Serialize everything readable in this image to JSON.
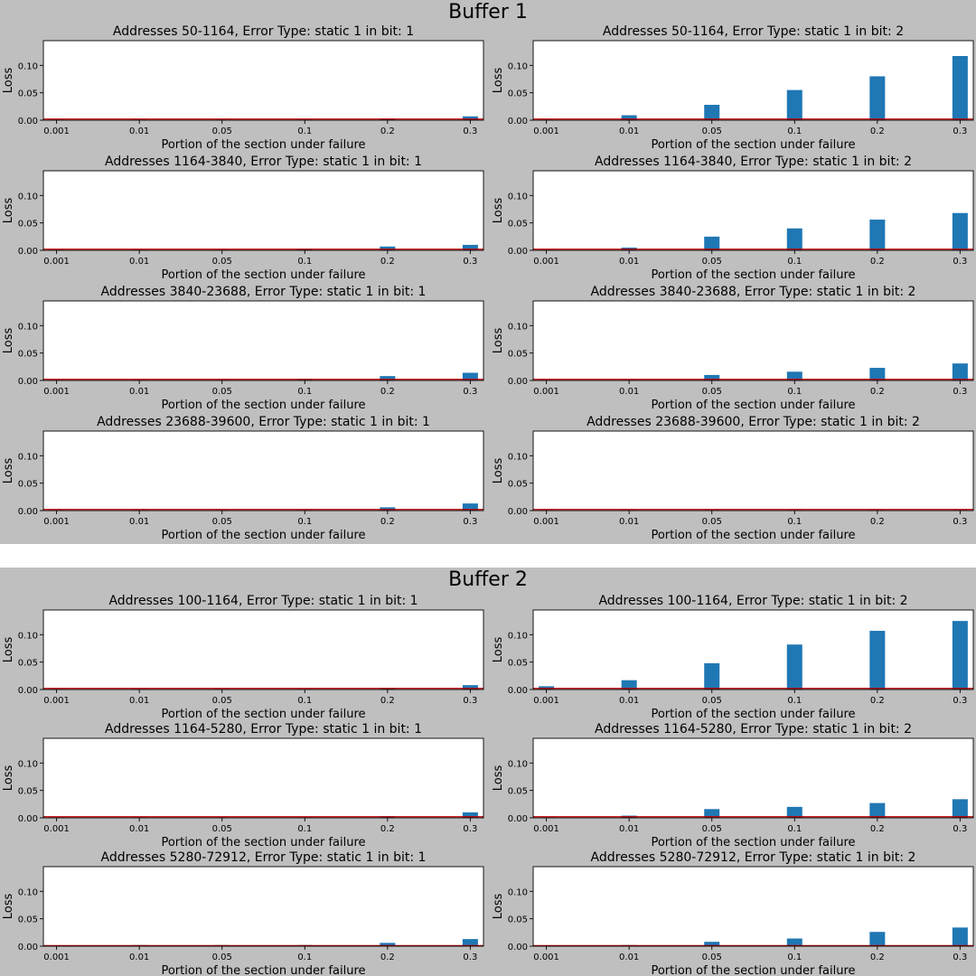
{
  "buffers": [
    {
      "title": "Buffer 1",
      "charts": [
        {
          "title": "Addresses 50-1164, Error Type: static 1 in bit: 1"
        },
        {
          "title": "Addresses 50-1164, Error Type: static 1 in bit: 2"
        },
        {
          "title": "Addresses 1164-3840, Error Type: static 1 in bit: 1"
        },
        {
          "title": "Addresses 1164-3840, Error Type: static 1 in bit: 2"
        },
        {
          "title": "Addresses 3840-23688, Error Type: static 1 in bit: 1"
        },
        {
          "title": "Addresses 3840-23688, Error Type: static 1 in bit: 2"
        },
        {
          "title": "Addresses 23688-39600, Error Type: static 1 in bit: 1"
        },
        {
          "title": "Addresses 23688-39600, Error Type: static 1 in bit: 2"
        }
      ]
    },
    {
      "title": "Buffer 2",
      "charts": [
        {
          "title": "Addresses 100-1164, Error Type: static 1 in bit: 1"
        },
        {
          "title": "Addresses 100-1164, Error Type: static 1 in bit: 2"
        },
        {
          "title": "Addresses 1164-5280, Error Type: static 1 in bit: 1"
        },
        {
          "title": "Addresses 1164-5280, Error Type: static 1 in bit: 2"
        },
        {
          "title": "Addresses 5280-72912, Error Type: static 1 in bit: 1"
        },
        {
          "title": "Addresses 5280-72912, Error Type: static 1 in bit: 2"
        }
      ]
    }
  ],
  "chart_data": [
    {
      "type": "bar",
      "panel": "Buffer 1",
      "title": "Addresses 50-1164, Error Type: static 1 in bit: 1",
      "xlabel": "Portion of the section under failure",
      "ylabel": "Loss",
      "categories": [
        "0.001",
        "0.01",
        "0.05",
        "0.1",
        "0.2",
        "0.3"
      ],
      "values": [
        0.001,
        0.001,
        0.001,
        0.001,
        0.003,
        0.007
      ],
      "baseline": 0.002,
      "ylim": [
        0,
        0.145
      ],
      "yticks": [
        "0.00",
        "0.05",
        "0.10"
      ]
    },
    {
      "type": "bar",
      "panel": "Buffer 1",
      "title": "Addresses 50-1164, Error Type: static 1 in bit: 2",
      "xlabel": "Portion of the section under failure",
      "ylabel": "Loss",
      "categories": [
        "0.001",
        "0.01",
        "0.05",
        "0.1",
        "0.2",
        "0.3"
      ],
      "values": [
        0.001,
        0.009,
        0.028,
        0.055,
        0.08,
        0.117
      ],
      "baseline": 0.002,
      "ylim": [
        0,
        0.145
      ],
      "yticks": [
        "0.00",
        "0.05",
        "0.10"
      ]
    },
    {
      "type": "bar",
      "panel": "Buffer 1",
      "title": "Addresses 1164-3840, Error Type: static 1 in bit: 1",
      "xlabel": "Portion of the section under failure",
      "ylabel": "Loss",
      "categories": [
        "0.001",
        "0.01",
        "0.05",
        "0.1",
        "0.2",
        "0.3"
      ],
      "values": [
        0.001,
        0.001,
        0.001,
        0.003,
        0.007,
        0.01
      ],
      "baseline": 0.002,
      "ylim": [
        0,
        0.145
      ],
      "yticks": [
        "0.00",
        "0.05",
        "0.10"
      ]
    },
    {
      "type": "bar",
      "panel": "Buffer 1",
      "title": "Addresses 1164-3840, Error Type: static 1 in bit: 2",
      "xlabel": "Portion of the section under failure",
      "ylabel": "Loss",
      "categories": [
        "0.001",
        "0.01",
        "0.05",
        "0.1",
        "0.2",
        "0.3"
      ],
      "values": [
        0.001,
        0.005,
        0.025,
        0.04,
        0.056,
        0.068
      ],
      "baseline": 0.002,
      "ylim": [
        0,
        0.145
      ],
      "yticks": [
        "0.00",
        "0.05",
        "0.10"
      ]
    },
    {
      "type": "bar",
      "panel": "Buffer 1",
      "title": "Addresses 3840-23688, Error Type: static 1 in bit: 1",
      "xlabel": "Portion of the section under failure",
      "ylabel": "Loss",
      "categories": [
        "0.001",
        "0.01",
        "0.05",
        "0.1",
        "0.2",
        "0.3"
      ],
      "values": [
        0.001,
        0.001,
        0.001,
        0.003,
        0.008,
        0.014
      ],
      "baseline": 0.002,
      "ylim": [
        0,
        0.145
      ],
      "yticks": [
        "0.00",
        "0.05",
        "0.10"
      ]
    },
    {
      "type": "bar",
      "panel": "Buffer 1",
      "title": "Addresses 3840-23688, Error Type: static 1 in bit: 2",
      "xlabel": "Portion of the section under failure",
      "ylabel": "Loss",
      "categories": [
        "0.001",
        "0.01",
        "0.05",
        "0.1",
        "0.2",
        "0.3"
      ],
      "values": [
        0.001,
        0.001,
        0.01,
        0.016,
        0.023,
        0.031
      ],
      "baseline": 0.002,
      "ylim": [
        0,
        0.145
      ],
      "yticks": [
        "0.00",
        "0.05",
        "0.10"
      ]
    },
    {
      "type": "bar",
      "panel": "Buffer 1",
      "title": "Addresses 23688-39600, Error Type: static 1 in bit: 1",
      "xlabel": "Portion of the section under failure",
      "ylabel": "Loss",
      "categories": [
        "0.001",
        "0.01",
        "0.05",
        "0.1",
        "0.2",
        "0.3"
      ],
      "values": [
        0.001,
        0.001,
        0.001,
        0.001,
        0.006,
        0.013
      ],
      "baseline": 0.002,
      "ylim": [
        0,
        0.145
      ],
      "yticks": [
        "0.00",
        "0.05",
        "0.10"
      ]
    },
    {
      "type": "bar",
      "panel": "Buffer 1",
      "title": "Addresses 23688-39600, Error Type: static 1 in bit: 2",
      "xlabel": "Portion of the section under failure",
      "ylabel": "Loss",
      "categories": [
        "0.001",
        "0.01",
        "0.05",
        "0.1",
        "0.2",
        "0.3"
      ],
      "values": [
        0.001,
        0.001,
        0.001,
        0.001,
        0.001,
        0.001
      ],
      "baseline": 0.002,
      "ylim": [
        0,
        0.145
      ],
      "yticks": [
        "0.00",
        "0.05",
        "0.10"
      ]
    },
    {
      "type": "bar",
      "panel": "Buffer 2",
      "title": "Addresses 100-1164, Error Type: static 1 in bit: 1",
      "xlabel": "Portion of the section under failure",
      "ylabel": "Loss",
      "categories": [
        "0.001",
        "0.01",
        "0.05",
        "0.1",
        "0.2",
        "0.3"
      ],
      "values": [
        0.001,
        0.001,
        0.001,
        0.001,
        0.003,
        0.008
      ],
      "baseline": 0.002,
      "ylim": [
        0,
        0.145
      ],
      "yticks": [
        "0.00",
        "0.05",
        "0.10"
      ]
    },
    {
      "type": "bar",
      "panel": "Buffer 2",
      "title": "Addresses 100-1164, Error Type: static 1 in bit: 2",
      "xlabel": "Portion of the section under failure",
      "ylabel": "Loss",
      "categories": [
        "0.001",
        "0.01",
        "0.05",
        "0.1",
        "0.2",
        "0.3"
      ],
      "values": [
        0.006,
        0.017,
        0.048,
        0.082,
        0.107,
        0.125
      ],
      "baseline": 0.002,
      "ylim": [
        0,
        0.145
      ],
      "yticks": [
        "0.00",
        "0.05",
        "0.10"
      ]
    },
    {
      "type": "bar",
      "panel": "Buffer 2",
      "title": "Addresses 1164-5280, Error Type: static 1 in bit: 1",
      "xlabel": "Portion of the section under failure",
      "ylabel": "Loss",
      "categories": [
        "0.001",
        "0.01",
        "0.05",
        "0.1",
        "0.2",
        "0.3"
      ],
      "values": [
        0.001,
        0.001,
        0.001,
        0.001,
        0.003,
        0.01
      ],
      "baseline": 0.002,
      "ylim": [
        0,
        0.145
      ],
      "yticks": [
        "0.00",
        "0.05",
        "0.10"
      ]
    },
    {
      "type": "bar",
      "panel": "Buffer 2",
      "title": "Addresses 1164-5280, Error Type: static 1 in bit: 2",
      "xlabel": "Portion of the section under failure",
      "ylabel": "Loss",
      "categories": [
        "0.001",
        "0.01",
        "0.05",
        "0.1",
        "0.2",
        "0.3"
      ],
      "values": [
        0.001,
        0.004,
        0.016,
        0.02,
        0.027,
        0.034
      ],
      "baseline": 0.002,
      "ylim": [
        0,
        0.145
      ],
      "yticks": [
        "0.00",
        "0.05",
        "0.10"
      ]
    },
    {
      "type": "bar",
      "panel": "Buffer 2",
      "title": "Addresses 5280-72912, Error Type: static 1 in bit: 1",
      "xlabel": "Portion of the section under failure",
      "ylabel": "Loss",
      "categories": [
        "0.001",
        "0.01",
        "0.05",
        "0.1",
        "0.2",
        "0.3"
      ],
      "values": [
        0.0,
        0.002,
        0.002,
        0.002,
        0.006,
        0.013
      ],
      "baseline": 0.001,
      "ylim": [
        0,
        0.145
      ],
      "yticks": [
        "0.00",
        "0.05",
        "0.10"
      ]
    },
    {
      "type": "bar",
      "panel": "Buffer 2",
      "title": "Addresses 5280-72912, Error Type: static 1 in bit: 2",
      "xlabel": "Portion of the section under failure",
      "ylabel": "Loss",
      "categories": [
        "0.001",
        "0.01",
        "0.05",
        "0.1",
        "0.2",
        "0.3"
      ],
      "values": [
        0.0,
        0.002,
        0.008,
        0.014,
        0.026,
        0.034
      ],
      "baseline": 0.001,
      "ylim": [
        0,
        0.145
      ],
      "yticks": [
        "0.00",
        "0.05",
        "0.10"
      ]
    }
  ],
  "colors": {
    "bar": "#1f77b4",
    "baseline": "#c00000",
    "panel_background": "#bfbfbf",
    "plot_background": "#ffffff",
    "text": "#000000"
  }
}
